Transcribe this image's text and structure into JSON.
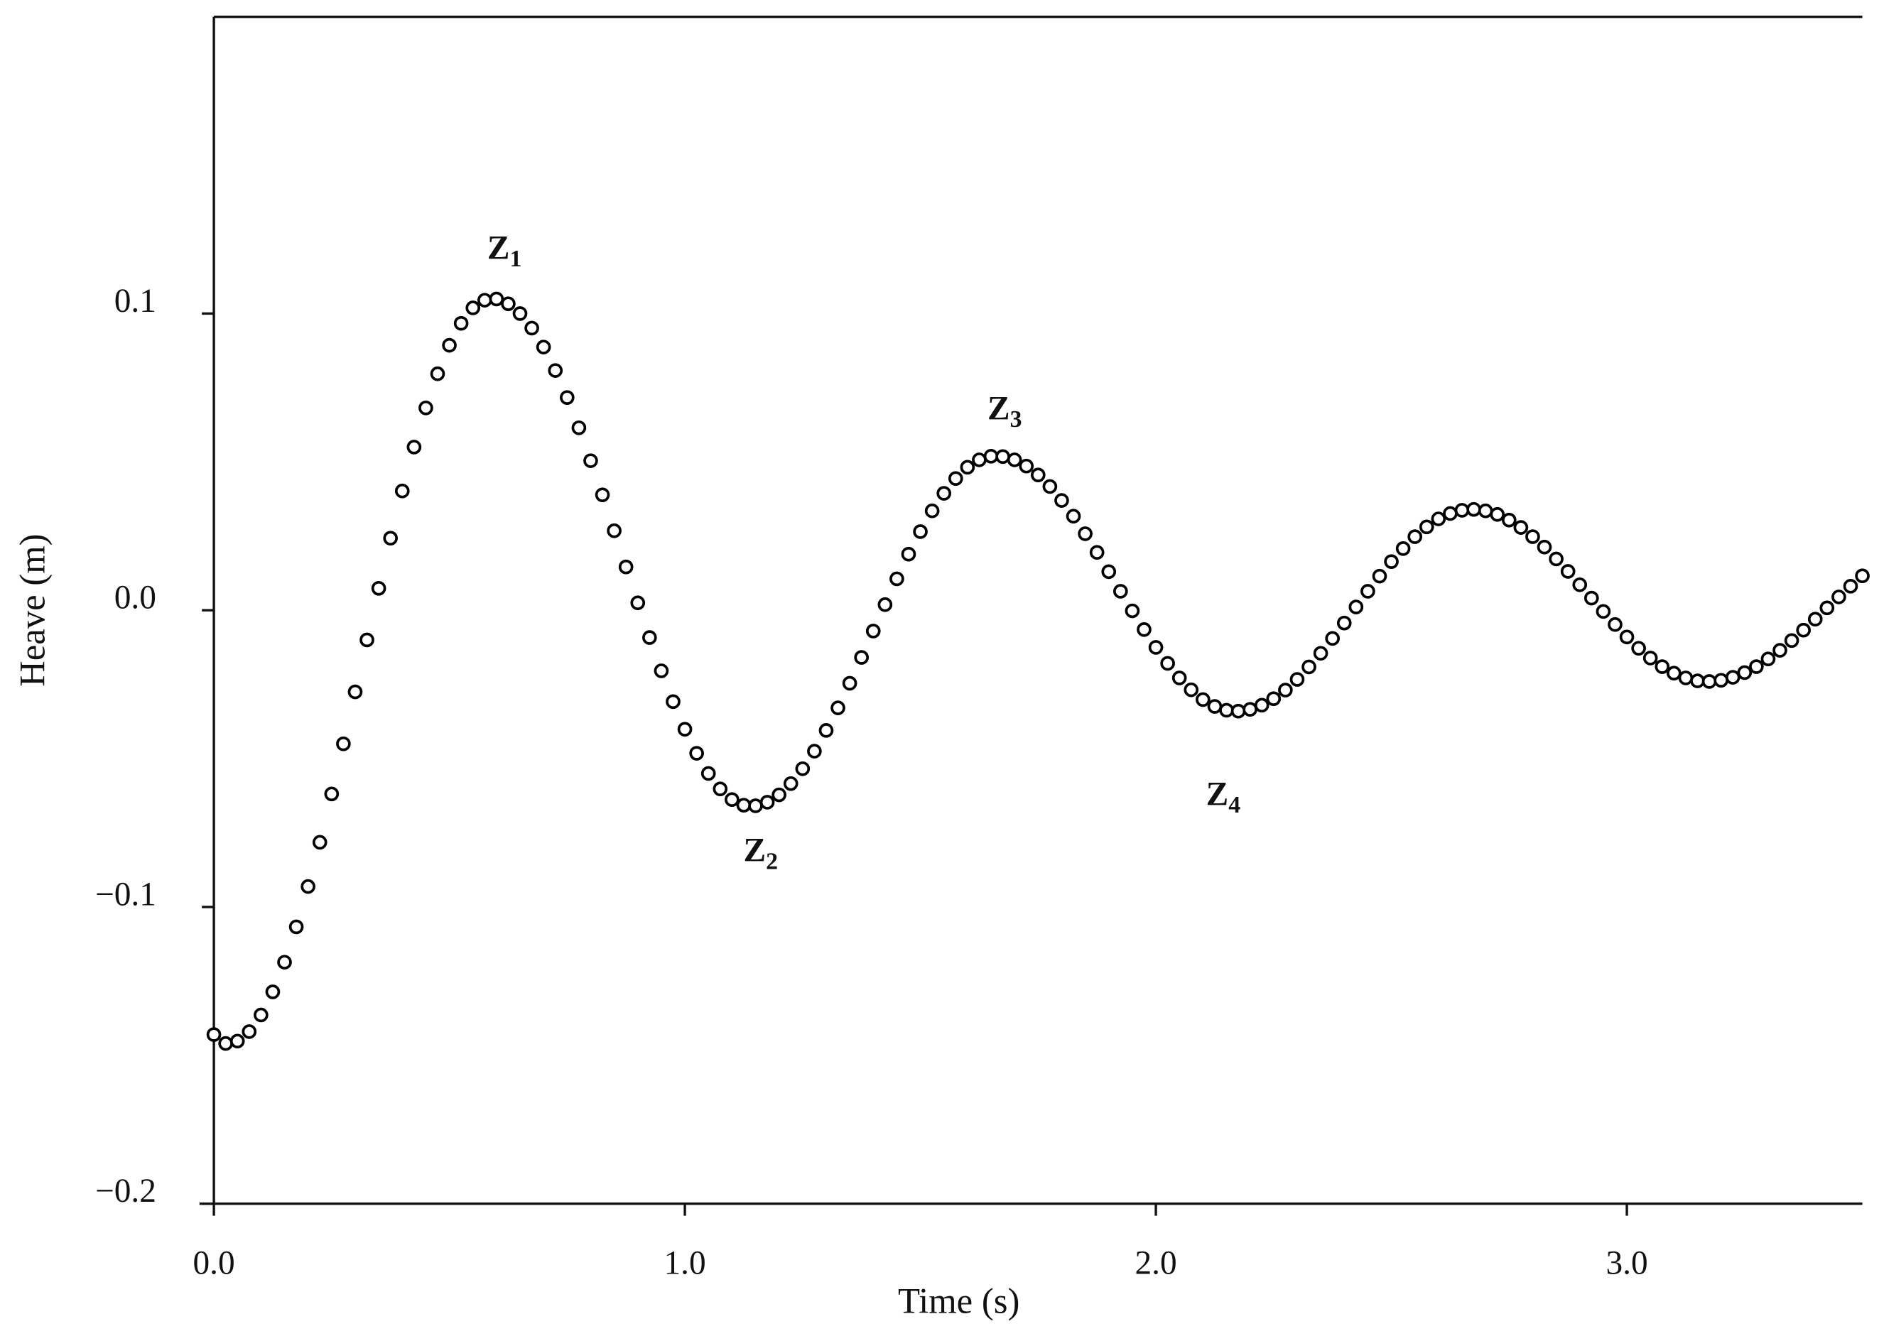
{
  "chart_data": {
    "type": "scatter",
    "xlabel": "Time (s)",
    "ylabel": "Heave (m)",
    "xlim": [
      0,
      3.5
    ],
    "ylim": [
      -0.2,
      0.2
    ],
    "xticks": [
      {
        "value": 0,
        "label": "0.0"
      },
      {
        "value": 1,
        "label": "1.0"
      },
      {
        "value": 2,
        "label": "2.0"
      },
      {
        "value": 3,
        "label": "3.0"
      }
    ],
    "yticks": [
      {
        "value": -0.2,
        "label": "−0.2"
      },
      {
        "value": -0.1,
        "label": "−0.1"
      },
      {
        "value": 0,
        "label": "0.0"
      },
      0.1
    ],
    "marker_color": "#000000",
    "x": [
      0,
      0.025,
      0.05,
      0.075,
      0.1,
      0.125,
      0.15,
      0.175,
      0.2,
      0.225,
      0.25,
      0.275,
      0.3,
      0.325,
      0.35,
      0.375,
      0.4,
      0.425,
      0.45,
      0.475,
      0.5,
      0.525,
      0.55,
      0.575,
      0.6,
      0.625,
      0.65,
      0.675,
      0.7,
      0.725,
      0.75,
      0.775,
      0.8,
      0.825,
      0.85,
      0.875,
      0.9,
      0.925,
      0.95,
      0.975,
      1,
      1.025,
      1.05,
      1.075,
      1.1,
      1.125,
      1.15,
      1.175,
      1.2,
      1.225,
      1.25,
      1.275,
      1.3,
      1.325,
      1.35,
      1.375,
      1.4,
      1.425,
      1.45,
      1.475,
      1.5,
      1.525,
      1.55,
      1.575,
      1.6,
      1.625,
      1.65,
      1.675,
      1.7,
      1.725,
      1.75,
      1.775,
      1.8,
      1.825,
      1.85,
      1.875,
      1.9,
      1.925,
      1.95,
      1.975,
      2,
      2.025,
      2.05,
      2.075,
      2.1,
      2.125,
      2.15,
      2.175,
      2.2,
      2.225,
      2.25,
      2.275,
      2.3,
      2.325,
      2.35,
      2.375,
      2.4,
      2.425,
      2.45,
      2.475,
      2.5,
      2.525,
      2.55,
      2.575,
      2.6,
      2.625,
      2.65,
      2.675,
      2.7,
      2.725,
      2.75,
      2.775,
      2.8,
      2.825,
      2.85,
      2.875,
      2.9,
      2.925,
      2.95,
      2.975,
      3,
      3.025,
      3.05,
      3.075,
      3.1,
      3.125,
      3.15,
      3.175,
      3.2,
      3.225,
      3.25,
      3.275,
      3.3,
      3.325,
      3.35,
      3.375,
      3.4,
      3.425,
      3.45,
      3.475,
      3.5
    ],
    "values": [
      -0.143,
      -0.146,
      -0.1452,
      -0.142,
      -0.1364,
      -0.1286,
      -0.1186,
      -0.1067,
      -0.0931,
      -0.0782,
      -0.0619,
      -0.045,
      -0.0275,
      -0.01,
      0.0074,
      0.0243,
      0.0402,
      0.055,
      0.0682,
      0.0797,
      0.0893,
      0.0967,
      0.1019,
      0.1045,
      0.1049,
      0.1033,
      0.1,
      0.0951,
      0.0887,
      0.0808,
      0.0717,
      0.0615,
      0.0504,
      0.0389,
      0.0268,
      0.0146,
      0.0025,
      -0.0092,
      -0.0204,
      -0.0308,
      -0.0401,
      -0.0482,
      -0.055,
      -0.0602,
      -0.0638,
      -0.0657,
      -0.0659,
      -0.0647,
      -0.0622,
      -0.0584,
      -0.0534,
      -0.0475,
      -0.0405,
      -0.0329,
      -0.0246,
      -0.0159,
      -0.007,
      0.0019,
      0.0106,
      0.0189,
      0.0265,
      0.0335,
      0.0394,
      0.0444,
      0.0482,
      0.0507,
      0.0519,
      0.0518,
      0.0507,
      0.0486,
      0.0456,
      0.0417,
      0.037,
      0.0317,
      0.0258,
      0.0195,
      0.013,
      0.0064,
      -0.0002,
      -0.0065,
      -0.0125,
      -0.0179,
      -0.0228,
      -0.0268,
      -0.0301,
      -0.0324,
      -0.0337,
      -0.034,
      -0.0334,
      -0.032,
      -0.0298,
      -0.0269,
      -0.0233,
      -0.0191,
      -0.0145,
      -0.0095,
      -0.0043,
      0.0011,
      0.0064,
      0.0115,
      0.0164,
      0.0208,
      0.0248,
      0.0281,
      0.0308,
      0.0326,
      0.0337,
      0.034,
      0.0335,
      0.0323,
      0.0304,
      0.0279,
      0.0248,
      0.0213,
      0.0173,
      0.0131,
      0.0086,
      0.0041,
      -0.0004,
      -0.0048,
      -0.009,
      -0.0128,
      -0.0161,
      -0.019,
      -0.0212,
      -0.0228,
      -0.0238,
      -0.024,
      -0.0236,
      -0.0226,
      -0.021,
      -0.019,
      -0.0164,
      -0.0135,
      -0.0102,
      -0.0067,
      -0.003,
      0.0008,
      0.0045,
      0.0081,
      0.0116
    ],
    "annotations": [
      {
        "text": "Z",
        "subscript": "1",
        "x": 0.617,
        "y": 0.121
      },
      {
        "text": "Z",
        "subscript": "2",
        "x": 1.161,
        "y": -0.082
      },
      {
        "text": "Z",
        "subscript": "3",
        "x": 1.679,
        "y": 0.067
      },
      {
        "text": "Z",
        "subscript": "4",
        "x": 2.143,
        "y": -0.063
      }
    ]
  }
}
